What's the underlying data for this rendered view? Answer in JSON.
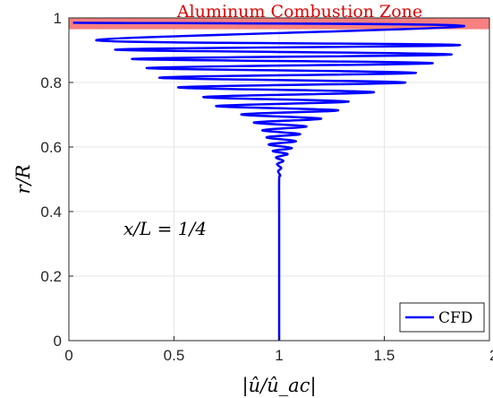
{
  "chart_data": {
    "type": "line",
    "title": "",
    "xlabel": "|û/û_ac|",
    "ylabel": "r/R",
    "xlim": [
      0,
      2
    ],
    "ylim": [
      0,
      1
    ],
    "x_ticks": [
      "0",
      "0.5",
      "1",
      "1.5",
      "2"
    ],
    "y_ticks": [
      "0",
      "0.2",
      "0.4",
      "0.6",
      "0.8",
      "1"
    ],
    "grid": true,
    "legend_position": "bottom-right",
    "series": [
      {
        "name": "CFD",
        "color": "#0000ff",
        "x": [
          1.0,
          1.0,
          1.0,
          1.0,
          1.005,
          0.995,
          1.01,
          0.99,
          1.02,
          0.985,
          1.04,
          0.97,
          1.06,
          0.95,
          1.08,
          0.94,
          1.1,
          0.92,
          1.13,
          0.88,
          1.2,
          0.82,
          1.28,
          0.7,
          1.33,
          0.64,
          1.45,
          0.52,
          1.6,
          0.43,
          1.65,
          0.37,
          1.73,
          0.3,
          1.82,
          0.22,
          1.86,
          0.13,
          1.88,
          0.02
        ],
        "y": [
          0.0,
          0.3,
          0.4,
          0.5,
          0.512,
          0.525,
          0.535,
          0.547,
          0.557,
          0.568,
          0.578,
          0.588,
          0.597,
          0.608,
          0.618,
          0.63,
          0.64,
          0.652,
          0.664,
          0.676,
          0.688,
          0.701,
          0.714,
          0.727,
          0.741,
          0.755,
          0.77,
          0.785,
          0.8,
          0.815,
          0.83,
          0.845,
          0.86,
          0.873,
          0.887,
          0.902,
          0.916,
          0.931,
          0.975,
          0.985
        ]
      }
    ],
    "shaded_band": {
      "y_range": [
        0.965,
        1.0
      ],
      "color": "#f78080",
      "label": "Aluminum Combustion Zone",
      "label_color": "#e00000"
    },
    "annotation": "x/L = 1/4"
  }
}
